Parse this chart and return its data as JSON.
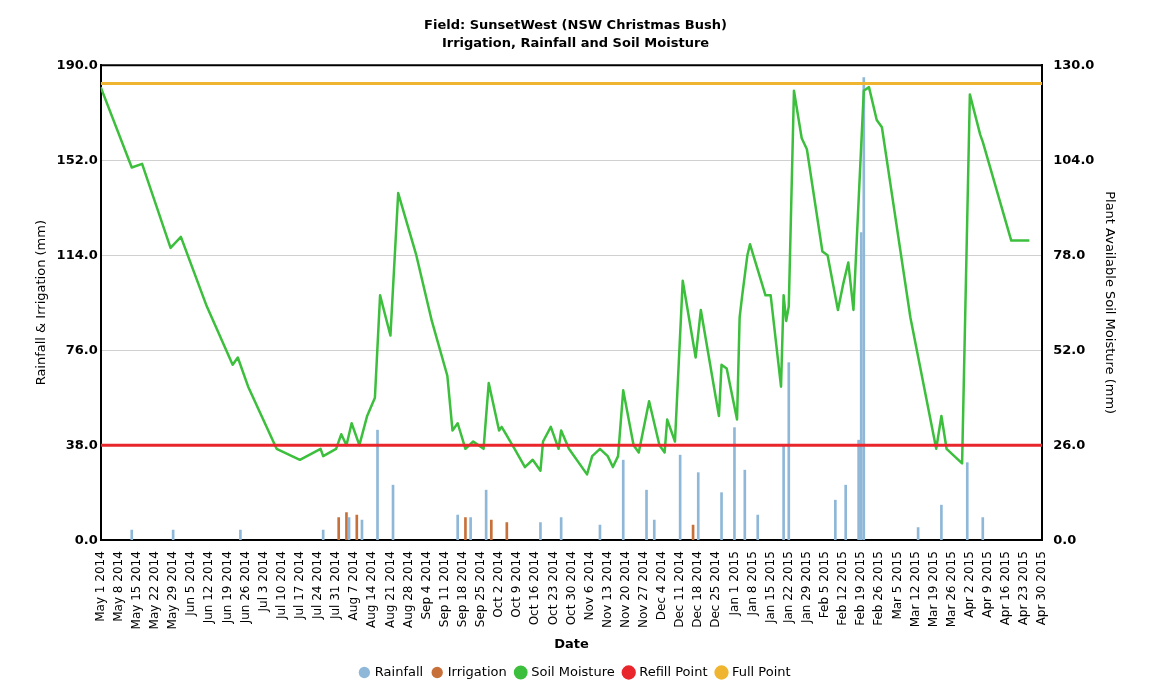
{
  "chart_data": {
    "type": "bar",
    "title": "Field: SunsetWest (NSW Christmas Bush)",
    "subtitle": "Irrigation, Rainfall and Soil Moisture",
    "xlabel": "Date",
    "ylabel": "Rainfall & Irrigation (mm)",
    "y2label": "Plant Available Soil Moisture (mm)",
    "xlim": [
      "2014-05-01",
      "2015-04-30"
    ],
    "xticks": [
      {
        "value": "2014-05-01",
        "label": "May 1 2014"
      },
      {
        "value": "2014-05-08",
        "label": "May 8 2014"
      },
      {
        "value": "2014-05-15",
        "label": "May 15 2014"
      },
      {
        "value": "2014-05-22",
        "label": "May 22 2014"
      },
      {
        "value": "2014-05-29",
        "label": "May 29 2014"
      },
      {
        "value": "2014-06-05",
        "label": "Jun 5 2014"
      },
      {
        "value": "2014-06-12",
        "label": "Jun 12 2014"
      },
      {
        "value": "2014-06-19",
        "label": "Jun 19 2014"
      },
      {
        "value": "2014-06-26",
        "label": "Jun 26 2014"
      },
      {
        "value": "2014-07-03",
        "label": "Jul 3 2014"
      },
      {
        "value": "2014-07-10",
        "label": "Jul 10 2014"
      },
      {
        "value": "2014-07-17",
        "label": "Jul 17 2014"
      },
      {
        "value": "2014-07-24",
        "label": "Jul 24 2014"
      },
      {
        "value": "2014-07-31",
        "label": "Jul 31 2014"
      },
      {
        "value": "2014-08-07",
        "label": "Aug 7 2014"
      },
      {
        "value": "2014-08-14",
        "label": "Aug 14 2014"
      },
      {
        "value": "2014-08-21",
        "label": "Aug 21 2014"
      },
      {
        "value": "2014-08-28",
        "label": "Aug 28 2014"
      },
      {
        "value": "2014-09-04",
        "label": "Sep 4 2014"
      },
      {
        "value": "2014-09-11",
        "label": "Sep 11 2014"
      },
      {
        "value": "2014-09-18",
        "label": "Sep 18 2014"
      },
      {
        "value": "2014-09-25",
        "label": "Sep 25 2014"
      },
      {
        "value": "2014-10-02",
        "label": "Oct 2 2014"
      },
      {
        "value": "2014-10-09",
        "label": "Oct 9 2014"
      },
      {
        "value": "2014-10-16",
        "label": "Oct 16 2014"
      },
      {
        "value": "2014-10-23",
        "label": "Oct 23 2014"
      },
      {
        "value": "2014-10-30",
        "label": "Oct 30 2014"
      },
      {
        "value": "2014-11-06",
        "label": "Nov 6 2014"
      },
      {
        "value": "2014-11-13",
        "label": "Nov 13 2014"
      },
      {
        "value": "2014-11-20",
        "label": "Nov 20 2014"
      },
      {
        "value": "2014-11-27",
        "label": "Nov 27 2014"
      },
      {
        "value": "2014-12-04",
        "label": "Dec 4 2014"
      },
      {
        "value": "2014-12-11",
        "label": "Dec 11 2014"
      },
      {
        "value": "2014-12-18",
        "label": "Dec 18 2014"
      },
      {
        "value": "2014-12-25",
        "label": "Dec 25 2014"
      },
      {
        "value": "2015-01-01",
        "label": "Jan 1 2015"
      },
      {
        "value": "2015-01-08",
        "label": "Jan 8 2015"
      },
      {
        "value": "2015-01-15",
        "label": "Jan 15 2015"
      },
      {
        "value": "2015-01-22",
        "label": "Jan 22 2015"
      },
      {
        "value": "2015-01-29",
        "label": "Jan 29 2015"
      },
      {
        "value": "2015-02-05",
        "label": "Feb 5 2015"
      },
      {
        "value": "2015-02-12",
        "label": "Feb 12 2015"
      },
      {
        "value": "2015-02-19",
        "label": "Feb 19 2015"
      },
      {
        "value": "2015-02-26",
        "label": "Feb 26 2015"
      },
      {
        "value": "2015-03-05",
        "label": "Mar 5 2015"
      },
      {
        "value": "2015-03-12",
        "label": "Mar 12 2015"
      },
      {
        "value": "2015-03-19",
        "label": "Mar 19 2015"
      },
      {
        "value": "2015-03-26",
        "label": "Mar 26 2015"
      },
      {
        "value": "2015-04-02",
        "label": "Apr 2 2015"
      },
      {
        "value": "2015-04-09",
        "label": "Apr 9 2015"
      },
      {
        "value": "2015-04-16",
        "label": "Apr 16 2015"
      },
      {
        "value": "2015-04-23",
        "label": "Apr 23 2015"
      },
      {
        "value": "2015-04-30",
        "label": "Apr 30 2015"
      }
    ],
    "ylim": [
      0,
      190
    ],
    "yticks": [
      {
        "value": 0,
        "label": "0.0"
      },
      {
        "value": 38,
        "label": "38.0"
      },
      {
        "value": 76,
        "label": "76.0"
      },
      {
        "value": 114,
        "label": "114.0"
      },
      {
        "value": 152,
        "label": "152.0"
      },
      {
        "value": 190,
        "label": "190.0"
      }
    ],
    "y2lim": [
      0,
      130
    ],
    "y2ticks": [
      {
        "value": 0,
        "label": "0.0"
      },
      {
        "value": 26,
        "label": "26.0"
      },
      {
        "value": 52,
        "label": "52.0"
      },
      {
        "value": 78,
        "label": "78.0"
      },
      {
        "value": 104,
        "label": "104.0"
      },
      {
        "value": 130,
        "label": "130.0"
      }
    ],
    "series": [
      {
        "name": "Rainfall",
        "color": "#8fb8d8",
        "x": [
          "2014-05-13",
          "2014-05-29",
          "2014-06-24",
          "2014-07-26",
          "2014-08-05",
          "2014-08-10",
          "2014-08-16",
          "2014-08-22",
          "2014-09-16",
          "2014-09-21",
          "2014-09-27",
          "2014-10-18",
          "2014-10-26",
          "2014-11-10",
          "2014-11-19",
          "2014-11-28",
          "2014-12-01",
          "2014-12-11",
          "2014-12-18",
          "2014-12-27",
          "2015-01-01",
          "2015-01-05",
          "2015-01-10",
          "2015-01-20",
          "2015-01-22",
          "2015-02-09",
          "2015-02-13",
          "2015-02-18",
          "2015-02-19",
          "2015-02-20",
          "2015-03-13",
          "2015-03-22",
          "2015-04-01",
          "2015-04-07"
        ],
        "values": [
          4,
          4,
          4,
          4,
          9,
          8,
          44,
          22,
          10,
          9,
          20,
          7,
          9,
          6,
          32,
          20,
          8,
          34,
          27,
          19,
          45,
          28,
          10,
          38,
          71,
          16,
          22,
          40,
          123,
          185,
          5,
          14,
          31,
          9
        ]
      },
      {
        "name": "Irrigation",
        "color": "#c8703a",
        "x": [
          "2014-08-01",
          "2014-08-04",
          "2014-08-08",
          "2014-09-19",
          "2014-09-29",
          "2014-10-05",
          "2014-12-16"
        ],
        "values": [
          9,
          11,
          10,
          9,
          8,
          7,
          6
        ]
      },
      {
        "name": "Soil Moisture",
        "type": "line",
        "axis": "y2",
        "color": "#3cbf3c",
        "x": [
          "2014-05-01",
          "2014-05-13",
          "2014-05-17",
          "2014-05-28",
          "2014-06-01",
          "2014-06-11",
          "2014-06-21",
          "2014-06-23",
          "2014-06-27",
          "2014-07-08",
          "2014-07-17",
          "2014-07-25",
          "2014-07-26",
          "2014-07-31",
          "2014-08-02",
          "2014-08-04",
          "2014-08-06",
          "2014-08-09",
          "2014-08-12",
          "2014-08-15",
          "2014-08-17",
          "2014-08-21",
          "2014-08-24",
          "2014-08-31",
          "2014-09-06",
          "2014-09-12",
          "2014-09-14",
          "2014-09-16",
          "2014-09-19",
          "2014-09-22",
          "2014-09-26",
          "2014-09-28",
          "2014-10-02",
          "2014-10-03",
          "2014-10-08",
          "2014-10-12",
          "2014-10-15",
          "2014-10-18",
          "2014-10-19",
          "2014-10-22",
          "2014-10-25",
          "2014-10-26",
          "2014-10-29",
          "2014-11-05",
          "2014-11-07",
          "2014-11-10",
          "2014-11-13",
          "2014-11-15",
          "2014-11-17",
          "2014-11-19",
          "2014-11-23",
          "2014-11-25",
          "2014-11-29",
          "2014-12-03",
          "2014-12-05",
          "2014-12-06",
          "2014-12-09",
          "2014-12-12",
          "2014-12-17",
          "2014-12-19",
          "2014-12-26",
          "2014-12-27",
          "2014-12-29",
          "2015-01-02",
          "2015-01-03",
          "2015-01-04",
          "2015-01-06",
          "2015-01-07",
          "2015-01-13",
          "2015-01-15",
          "2015-01-19",
          "2015-01-20",
          "2015-01-21",
          "2015-01-22",
          "2015-01-24",
          "2015-01-27",
          "2015-01-29",
          "2015-02-04",
          "2015-02-06",
          "2015-02-10",
          "2015-02-12",
          "2015-02-14",
          "2015-02-16",
          "2015-02-20",
          "2015-02-22",
          "2015-02-25",
          "2015-02-27",
          "2015-03-10",
          "2015-03-20",
          "2015-03-22",
          "2015-03-24",
          "2015-03-30",
          "2015-04-02",
          "2015-04-06",
          "2015-04-07",
          "2015-04-18",
          "2015-04-25"
        ],
        "values": [
          124,
          102,
          103,
          80,
          83,
          64,
          48,
          50,
          42,
          25,
          22,
          25,
          23,
          25,
          29,
          26,
          32,
          26,
          34,
          39,
          67,
          56,
          95,
          78,
          60,
          45,
          30,
          32,
          25,
          27,
          25,
          43,
          30,
          31,
          25,
          20,
          22,
          19,
          27,
          31,
          25,
          30,
          25,
          18,
          23,
          25,
          23,
          20,
          23,
          41,
          26,
          24,
          38,
          26,
          24,
          33,
          27,
          71,
          50,
          63,
          34,
          48,
          47,
          33,
          61,
          67,
          78,
          81,
          67,
          67,
          42,
          67,
          60,
          64,
          123,
          110,
          107,
          79,
          78,
          63,
          70,
          76,
          63,
          123,
          124,
          115,
          113,
          61,
          25,
          34,
          25,
          21,
          122,
          111,
          109,
          82,
          82
        ]
      }
    ],
    "ref_lines": [
      {
        "axis": "y2",
        "value": 26,
        "label": "Refill Point",
        "color": "#e8262b"
      },
      {
        "axis": "y2",
        "value": 125,
        "label": "Full Point",
        "color": "#f0b530"
      }
    ],
    "grid": "y",
    "legend": "bottom"
  }
}
